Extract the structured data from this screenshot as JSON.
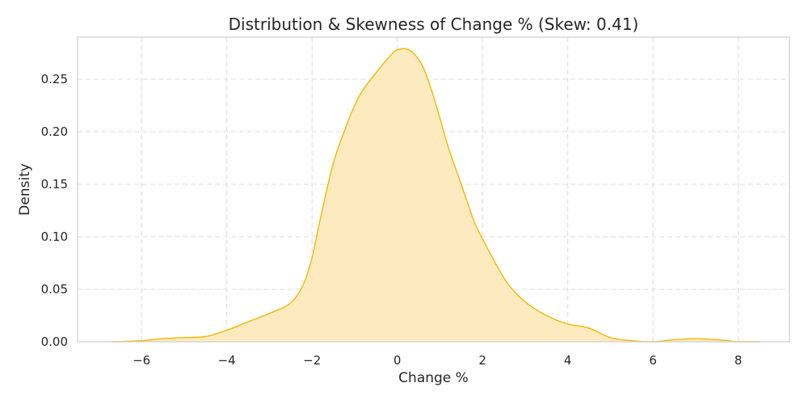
{
  "chart_data": {
    "type": "area",
    "title": "Distribution & Skewness of Change % (Skew: 0.41)",
    "xlabel": "Change %",
    "ylabel": "Density",
    "xlim": [
      -7.5,
      9.2
    ],
    "ylim": [
      0,
      0.29
    ],
    "x_ticks": [
      -6,
      -4,
      -2,
      0,
      2,
      4,
      6,
      8
    ],
    "x_tick_labels": [
      "−6",
      "−4",
      "−2",
      "0",
      "2",
      "4",
      "6",
      "8"
    ],
    "y_ticks": [
      0.0,
      0.05,
      0.1,
      0.15,
      0.2,
      0.25
    ],
    "y_tick_labels": [
      "0.00",
      "0.05",
      "0.10",
      "0.15",
      "0.20",
      "0.25"
    ],
    "grid": true,
    "colors": {
      "line": "#f2b705",
      "fill": "#fdeabc",
      "grid": "#dcdcdc",
      "frame": "#cfcfcf",
      "text": "#262626"
    },
    "series": [
      {
        "x": [
          -6.7,
          -6.0,
          -5.5,
          -5.0,
          -4.5,
          -4.0,
          -3.5,
          -3.0,
          -2.5,
          -2.2,
          -2.0,
          -1.8,
          -1.5,
          -1.2,
          -1.0,
          -0.8,
          -0.5,
          -0.3,
          -0.1,
          0.0,
          0.2,
          0.4,
          0.6,
          0.8,
          1.0,
          1.2,
          1.5,
          1.8,
          2.0,
          2.3,
          2.6,
          3.0,
          3.5,
          4.0,
          4.5,
          5.0,
          5.5,
          6.0,
          6.5,
          7.0,
          7.5,
          8.0,
          8.5
        ],
        "y": [
          0.0,
          0.001,
          0.003,
          0.004,
          0.005,
          0.011,
          0.019,
          0.027,
          0.037,
          0.055,
          0.08,
          0.118,
          0.17,
          0.205,
          0.225,
          0.24,
          0.256,
          0.266,
          0.275,
          0.278,
          0.279,
          0.274,
          0.262,
          0.24,
          0.213,
          0.185,
          0.15,
          0.115,
          0.098,
          0.075,
          0.055,
          0.038,
          0.025,
          0.017,
          0.013,
          0.004,
          0.001,
          0.0,
          0.002,
          0.003,
          0.002,
          0.0,
          0.0
        ]
      }
    ]
  }
}
